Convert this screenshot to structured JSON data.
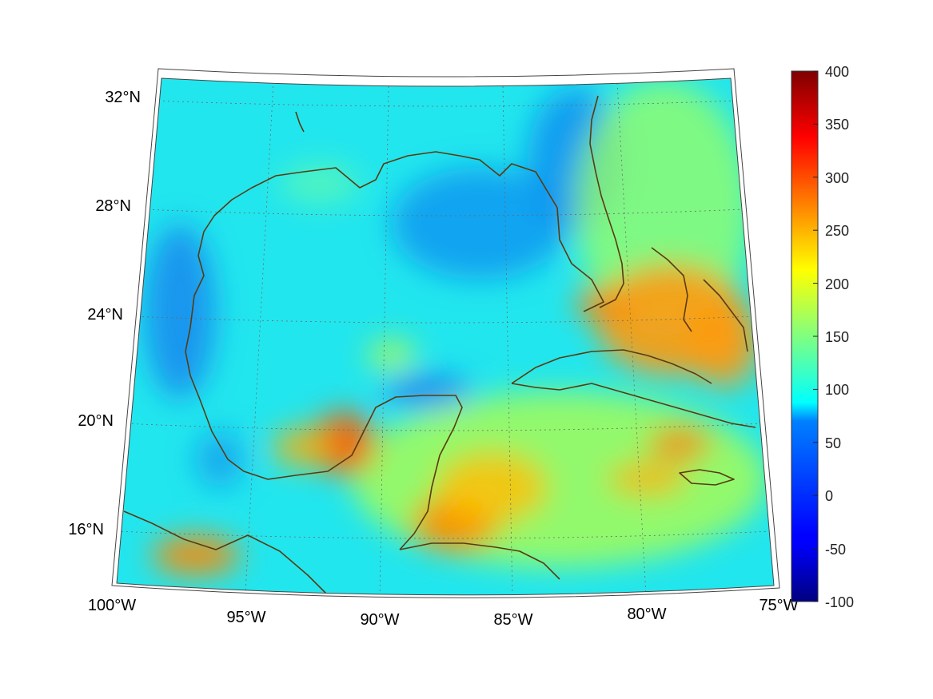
{
  "map": {
    "projection": "conic",
    "lon_range": [
      -100,
      -75
    ],
    "lat_range": [
      14,
      32
    ],
    "lon_ticks": [
      {
        "value": -100,
        "label": "100°W"
      },
      {
        "value": -95,
        "label": "95°W"
      },
      {
        "value": -90,
        "label": "90°W"
      },
      {
        "value": -85,
        "label": "85°W"
      },
      {
        "value": -80,
        "label": "80°W"
      },
      {
        "value": -75,
        "label": "75°W"
      }
    ],
    "lat_ticks": [
      {
        "value": 32,
        "label": "32°N"
      },
      {
        "value": 28,
        "label": "28°N"
      },
      {
        "value": 24,
        "label": "24°N"
      },
      {
        "value": 20,
        "label": "20°N"
      },
      {
        "value": 16,
        "label": "16°N"
      }
    ],
    "grid": true,
    "coastline_color": "#5a3a10",
    "background_value": 100
  },
  "colorbar": {
    "colormap": "jet",
    "min": -100,
    "max": 400,
    "ticks": [
      "400",
      "350",
      "300",
      "250",
      "200",
      "150",
      "100",
      "50",
      "0",
      "-50",
      "-100"
    ]
  }
}
